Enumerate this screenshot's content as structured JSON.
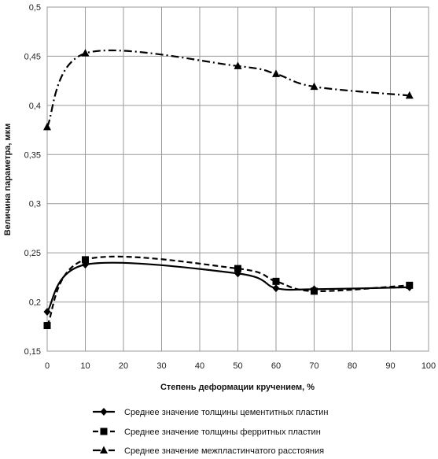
{
  "chart_data": {
    "type": "line",
    "title": "",
    "xlabel": "Степень деформации кручением, %",
    "ylabel": "Величина параметра, мкм",
    "xlim": [
      0,
      100
    ],
    "ylim": [
      0.15,
      0.5
    ],
    "x_ticks": [
      0,
      10,
      20,
      30,
      40,
      50,
      60,
      70,
      80,
      90,
      100
    ],
    "y_ticks": [
      0.15,
      0.2,
      0.25,
      0.3,
      0.35,
      0.4,
      0.45,
      0.5
    ],
    "x_tick_labels": [
      "0",
      "10",
      "20",
      "30",
      "40",
      "50",
      "60",
      "70",
      "80",
      "90",
      "100"
    ],
    "y_tick_labels": [
      "0,15",
      "0,2",
      "0,25",
      "0,3",
      "0,35",
      "0,4",
      "0,45",
      "0,5"
    ],
    "grid": true,
    "legend_position": "bottom",
    "x": [
      0,
      10,
      50,
      60,
      70,
      95
    ],
    "series": [
      {
        "name": "Среднее значение толщины цементитных пластин",
        "values": [
          0.19,
          0.238,
          0.229,
          0.214,
          0.213,
          0.215
        ],
        "color": "#000000",
        "line_style": "solid",
        "marker": "diamond"
      },
      {
        "name": "Среднее значение толщины ферритных пластин",
        "values": [
          0.176,
          0.243,
          0.234,
          0.221,
          0.211,
          0.217
        ],
        "color": "#000000",
        "line_style": "dashed",
        "marker": "square"
      },
      {
        "name": "Среднее значение межпластинчатого расстояния",
        "values": [
          0.378,
          0.453,
          0.44,
          0.432,
          0.419,
          0.41
        ],
        "color": "#000000",
        "line_style": "dash-dot",
        "marker": "triangle"
      }
    ]
  }
}
